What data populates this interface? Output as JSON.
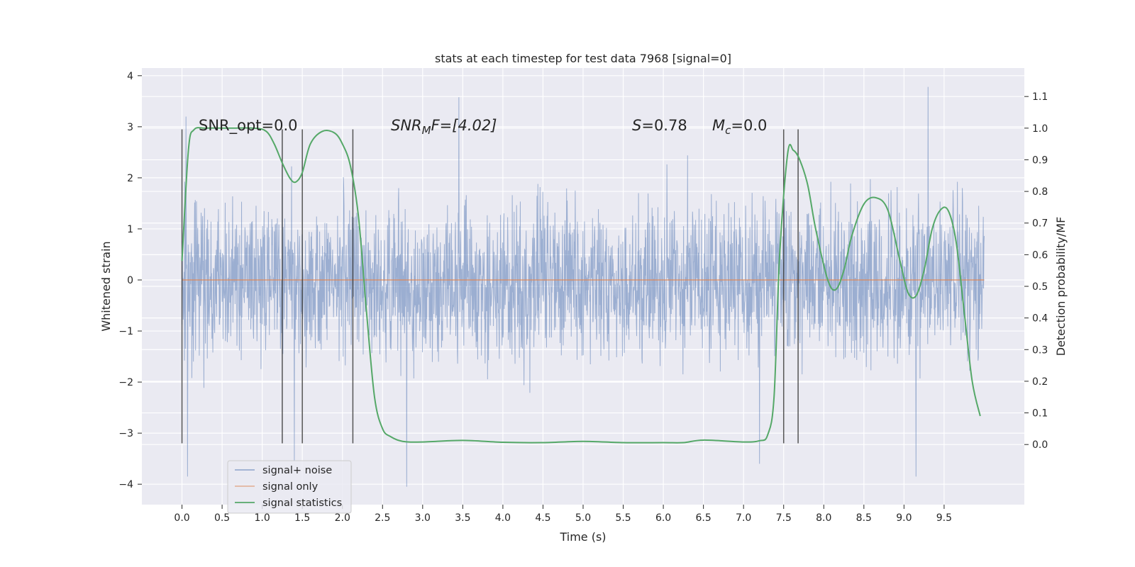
{
  "chart_data": {
    "type": "line",
    "title": "stats at each timestep for test data 7968 [signal=0]",
    "xlabel": "Time (s)",
    "ylabel": "Whitened strain",
    "y2label": "Detection probability/MF",
    "xlim": [
      -0.5,
      10.5
    ],
    "ylim": [
      -4.4,
      4.15
    ],
    "y2lim": [
      -0.19,
      1.19
    ],
    "x_ticks": [
      0.0,
      0.5,
      1.0,
      1.5,
      2.0,
      2.5,
      3.0,
      3.5,
      4.0,
      4.5,
      5.0,
      5.5,
      6.0,
      6.5,
      7.0,
      7.5,
      8.0,
      8.5,
      9.0,
      9.5
    ],
    "y_ticks": [
      -4,
      -3,
      -2,
      -1,
      0,
      1,
      2,
      3,
      4
    ],
    "y2_ticks": [
      0.0,
      0.1,
      0.2,
      0.3,
      0.4,
      0.5,
      0.6,
      0.7,
      0.8,
      0.9,
      1.0,
      1.1
    ],
    "grid": true,
    "legend_position": "lower-left",
    "annotations": {
      "snr_opt": "SNR_opt=0.0",
      "snr_mf_base": "SNR",
      "snr_mf_sub": "M",
      "snr_mf_rest": "F=[4.02]",
      "s_base": "S",
      "s_rest": "=0.78",
      "mc_base": "M",
      "mc_sub": "c",
      "mc_rest": "=0.0"
    },
    "detection_markers": [
      0.0,
      1.25,
      1.5,
      2.13,
      7.5,
      7.68
    ],
    "marker_range": [
      -3.2,
      2.95
    ],
    "series": [
      {
        "name": "signal+ noise",
        "color": "#4c72b0",
        "kind": "noise",
        "x_range": [
          0.0,
          10.0
        ],
        "typical_envelope": [
          -2.2,
          2.2
        ],
        "extremes": [
          [
            0.07,
            -3.85
          ],
          [
            0.05,
            3.2
          ],
          [
            1.4,
            -3.55
          ],
          [
            3.45,
            3.58
          ],
          [
            2.8,
            -4.05
          ],
          [
            9.3,
            3.78
          ],
          [
            9.15,
            -3.85
          ],
          [
            7.2,
            -3.6
          ]
        ]
      },
      {
        "name": "signal only",
        "color": "#dd8452",
        "kind": "line",
        "x": [
          0.0,
          10.0
        ],
        "y": [
          0.0,
          0.0
        ]
      },
      {
        "name": "signal statistics",
        "color": "#55a868",
        "kind": "line",
        "axis": "right",
        "x": [
          0.0,
          0.08,
          0.15,
          0.3,
          0.6,
          0.9,
          1.05,
          1.15,
          1.25,
          1.35,
          1.42,
          1.5,
          1.6,
          1.75,
          1.9,
          2.0,
          2.1,
          2.2,
          2.3,
          2.4,
          2.5,
          2.6,
          2.75,
          3.0,
          3.5,
          4.0,
          4.5,
          5.0,
          5.5,
          6.0,
          6.25,
          6.5,
          7.0,
          7.2,
          7.3,
          7.38,
          7.45,
          7.55,
          7.62,
          7.7,
          7.8,
          7.9,
          8.05,
          8.15,
          8.25,
          8.35,
          8.5,
          8.65,
          8.8,
          8.95,
          9.05,
          9.15,
          9.25,
          9.35,
          9.45,
          9.55,
          9.65,
          9.75,
          9.85,
          9.95
        ],
        "y": [
          0.58,
          0.93,
          0.995,
          1.0,
          1.0,
          1.0,
          0.99,
          0.95,
          0.89,
          0.84,
          0.83,
          0.86,
          0.95,
          0.99,
          0.985,
          0.95,
          0.88,
          0.72,
          0.42,
          0.15,
          0.05,
          0.025,
          0.01,
          0.008,
          0.013,
          0.007,
          0.006,
          0.01,
          0.006,
          0.006,
          0.006,
          0.014,
          0.008,
          0.012,
          0.03,
          0.15,
          0.6,
          0.92,
          0.93,
          0.9,
          0.82,
          0.68,
          0.52,
          0.49,
          0.55,
          0.66,
          0.76,
          0.78,
          0.74,
          0.58,
          0.48,
          0.47,
          0.55,
          0.68,
          0.74,
          0.74,
          0.64,
          0.42,
          0.2,
          0.09
        ]
      }
    ]
  },
  "legend": [
    {
      "label": "signal+ noise",
      "color": "#4c72b0",
      "opacity": 0.6
    },
    {
      "label": "signal only",
      "color": "#dd8452",
      "opacity": 0.6
    },
    {
      "label": "signal statistics",
      "color": "#55a868",
      "opacity": 1
    }
  ],
  "colors": {
    "plot_background": "#eaeaf2",
    "grid": "#ffffff",
    "marker": "#3a3a3a"
  }
}
